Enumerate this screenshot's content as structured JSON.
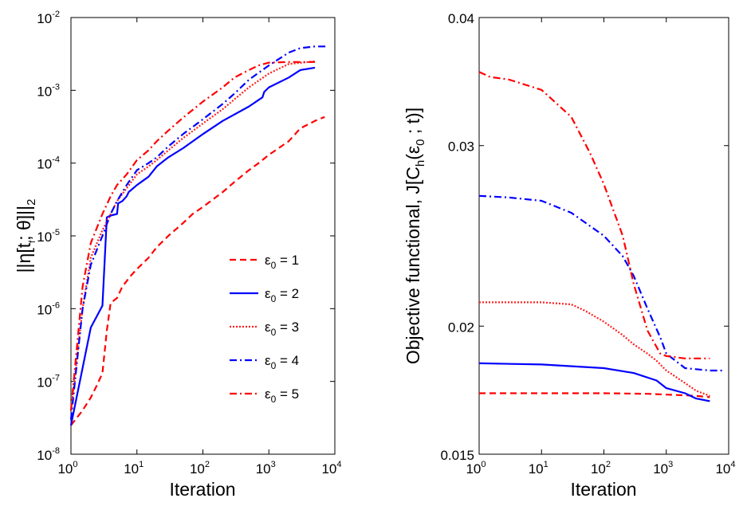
{
  "chart_data": [
    {
      "type": "line",
      "xscale": "log",
      "yscale": "log",
      "xlim": [
        1,
        10000
      ],
      "ylim": [
        1e-08,
        0.01
      ],
      "xlabel": "Iteration",
      "ylabel": "||η[t_f ; θ]||_2",
      "x_ticks": [
        {
          "base": "10",
          "exp": "0"
        },
        {
          "base": "10",
          "exp": "1"
        },
        {
          "base": "10",
          "exp": "2"
        },
        {
          "base": "10",
          "exp": "3"
        },
        {
          "base": "10",
          "exp": "4"
        }
      ],
      "y_ticks": [
        {
          "base": "10",
          "exp": "-8"
        },
        {
          "base": "10",
          "exp": "-7"
        },
        {
          "base": "10",
          "exp": "-6"
        },
        {
          "base": "10",
          "exp": "-5"
        },
        {
          "base": "10",
          "exp": "-4"
        },
        {
          "base": "10",
          "exp": "-3"
        },
        {
          "base": "10",
          "exp": "-2"
        }
      ],
      "legend_position": "lower right",
      "series": [
        {
          "name": "ε_0 = 1",
          "legend_main": "ε",
          "legend_sub": "0",
          "legend_tail": " = 1",
          "color": "#ff0000",
          "style": "dashed",
          "x": [
            1,
            1.5,
            2,
            2.5,
            3,
            3.5,
            4,
            5,
            6,
            8,
            10,
            15,
            20,
            30,
            50,
            70,
            100,
            200,
            300,
            500,
            700,
            1000,
            2000,
            3000,
            5000,
            7000
          ],
          "y": [
            2.5e-08,
            4e-08,
            6e-08,
            9e-08,
            1.3e-07,
            5e-07,
            1.2e-06,
            1.4e-06,
            2e-06,
            2.8e-06,
            3.5e-06,
            5e-06,
            7e-06,
            1e-05,
            1.5e-05,
            2e-05,
            2.5e-05,
            4e-05,
            5.5e-05,
            8e-05,
            0.0001,
            0.00013,
            0.0002,
            0.0003,
            0.00038,
            0.00043
          ]
        },
        {
          "name": "ε_0 = 2",
          "legend_main": "ε",
          "legend_sub": "0",
          "legend_tail": " = 2",
          "color": "#0000ff",
          "style": "solid",
          "x": [
            1,
            2,
            3,
            3.5,
            4,
            5,
            5.2,
            6,
            7,
            7.5,
            8,
            10,
            15,
            20,
            30,
            50,
            100,
            200,
            500,
            800,
            850,
            1000,
            2000,
            3000,
            5000
          ],
          "y": [
            2.5e-08,
            5.5e-07,
            1.1e-06,
            1.8e-05,
            1.9e-05,
            2e-05,
            2.8e-05,
            3e-05,
            3.5e-05,
            4e-05,
            4.2e-05,
            5e-05,
            6.5e-05,
            9e-05,
            0.00012,
            0.00016,
            0.00025,
            0.00038,
            0.0006,
            0.0008,
            0.00095,
            0.0011,
            0.0015,
            0.0019,
            0.00205
          ]
        },
        {
          "name": "ε_0 = 3",
          "legend_main": "ε",
          "legend_sub": "0",
          "legend_tail": " = 3",
          "color": "#ff2020",
          "style": "dotted",
          "x": [
            1,
            1.5,
            2,
            3,
            4,
            5,
            7,
            10,
            15,
            20,
            30,
            50,
            100,
            200,
            300,
            500,
            1000,
            2000,
            5000
          ],
          "y": [
            4e-08,
            1e-06,
            5e-06,
            1.2e-05,
            2e-05,
            3e-05,
            4.5e-05,
            7e-05,
            9e-05,
            0.00011,
            0.00015,
            0.00022,
            0.00035,
            0.00055,
            0.00075,
            0.0011,
            0.0017,
            0.0023,
            0.0025
          ]
        },
        {
          "name": "ε_0 = 4",
          "legend_main": "ε",
          "legend_sub": "0",
          "legend_tail": " = 4",
          "color": "#0000ff",
          "style": "dashdot",
          "x": [
            1,
            1.5,
            2,
            3,
            4,
            5,
            7,
            10,
            15,
            20,
            30,
            50,
            100,
            200,
            300,
            500,
            1000,
            2000,
            3000,
            5000,
            8000
          ],
          "y": [
            3e-08,
            1e-06,
            4e-06,
            1e-05,
            2e-05,
            3e-05,
            5e-05,
            8e-05,
            0.0001,
            0.00012,
            0.00017,
            0.00025,
            0.0004,
            0.00065,
            0.0009,
            0.0014,
            0.0022,
            0.0033,
            0.0038,
            0.004,
            0.004
          ]
        },
        {
          "name": "ε_0 = 5",
          "legend_main": "ε",
          "legend_sub": "0",
          "legend_tail": " = 5",
          "color": "#ff0000",
          "style": "dashdot",
          "x": [
            1,
            1.5,
            2,
            3,
            4,
            5,
            7,
            10,
            15,
            20,
            30,
            50,
            100,
            200,
            300,
            500,
            700,
            1000,
            2000,
            5000
          ],
          "y": [
            4e-08,
            2e-06,
            8e-06,
            2e-05,
            3.5e-05,
            5e-05,
            7e-05,
            0.00011,
            0.00015,
            0.0002,
            0.00028,
            0.00042,
            0.0007,
            0.0011,
            0.0015,
            0.0019,
            0.0022,
            0.0024,
            0.00245,
            0.00245
          ]
        }
      ]
    },
    {
      "type": "line",
      "xscale": "log",
      "yscale": "log",
      "xlim": [
        1,
        10000
      ],
      "ylim": [
        0.015,
        0.04
      ],
      "xlabel": "Iteration",
      "ylabel": "Objective functional, J[C_h(ε_0 ; t)]",
      "x_ticks": [
        {
          "base": "10",
          "exp": "0"
        },
        {
          "base": "10",
          "exp": "1"
        },
        {
          "base": "10",
          "exp": "2"
        },
        {
          "base": "10",
          "exp": "3"
        },
        {
          "base": "10",
          "exp": "4"
        }
      ],
      "y_ticks": [
        "0.015",
        "0.02",
        "0.03",
        "0.04"
      ],
      "series": [
        {
          "name": "ε_0 = 1",
          "color": "#ff0000",
          "style": "dashed",
          "x": [
            1,
            10,
            100,
            500,
            1000,
            2000,
            3000,
            5000
          ],
          "y": [
            0.0172,
            0.0172,
            0.0172,
            0.01718,
            0.01715,
            0.01712,
            0.0171,
            0.01705
          ]
        },
        {
          "name": "ε_0 = 2",
          "color": "#0000ff",
          "style": "solid",
          "x": [
            1,
            10,
            100,
            300,
            700,
            1000,
            2000,
            3000,
            5000
          ],
          "y": [
            0.0184,
            0.01835,
            0.0182,
            0.018,
            0.0177,
            0.0174,
            0.0172,
            0.017,
            0.0169
          ]
        },
        {
          "name": "ε_0 = 3",
          "color": "#ff2020",
          "style": "dotted",
          "x": [
            1,
            10,
            30,
            50,
            100,
            200,
            300,
            500,
            700,
            1000,
            2000,
            3000,
            5000
          ],
          "y": [
            0.0211,
            0.0211,
            0.021,
            0.0207,
            0.0202,
            0.0196,
            0.0192,
            0.0188,
            0.0185,
            0.0181,
            0.0176,
            0.0173,
            0.0171
          ]
        },
        {
          "name": "ε_0 = 4",
          "color": "#0000ff",
          "style": "dashdot",
          "x": [
            1,
            3,
            10,
            30,
            100,
            200,
            300,
            500,
            800,
            1000,
            2000,
            5000,
            8000
          ],
          "y": [
            0.0268,
            0.0267,
            0.0265,
            0.0258,
            0.0245,
            0.0234,
            0.0224,
            0.0208,
            0.0195,
            0.0188,
            0.0182,
            0.0181,
            0.0181
          ]
        },
        {
          "name": "ε_0 = 5",
          "color": "#ff0000",
          "style": "dashdot",
          "x": [
            1,
            1.5,
            3,
            10,
            30,
            60,
            100,
            200,
            300,
            500,
            800,
            1000,
            2000,
            5000
          ],
          "y": [
            0.0354,
            0.035,
            0.0348,
            0.034,
            0.032,
            0.0295,
            0.0275,
            0.0245,
            0.022,
            0.0198,
            0.0188,
            0.0187,
            0.0186,
            0.0186
          ]
        }
      ]
    }
  ]
}
